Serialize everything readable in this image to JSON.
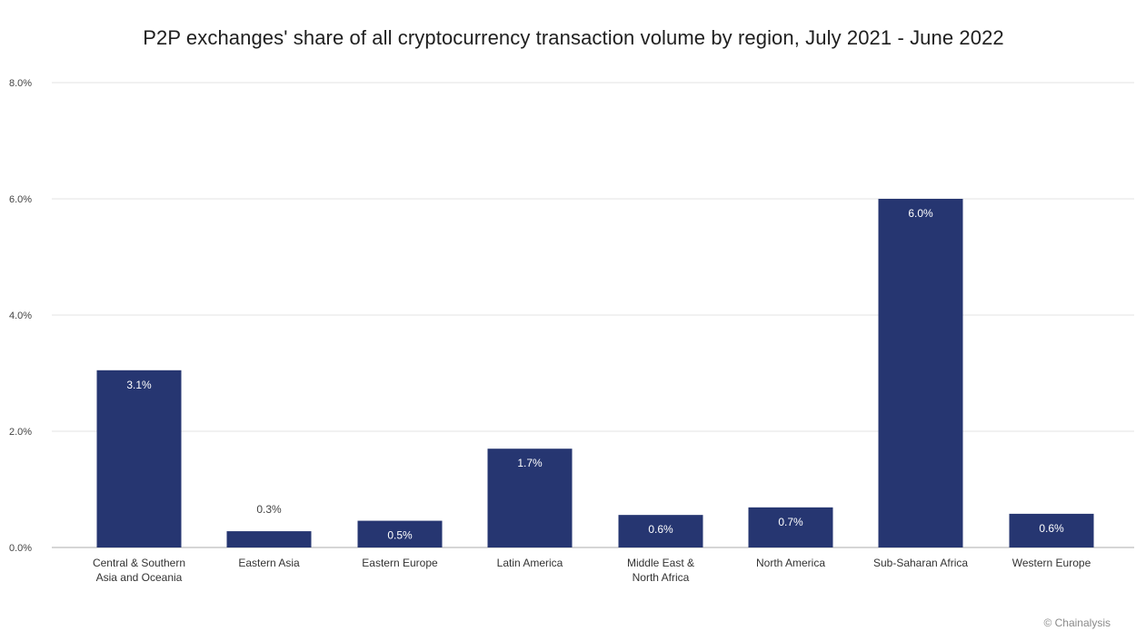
{
  "chart_data": {
    "type": "bar",
    "title": "P2P exchanges' share of all cryptocurrency transaction volume by region, July 2021 - June 2022",
    "categories": [
      [
        "Central & Southern",
        "Asia and Oceania"
      ],
      [
        "Eastern Asia"
      ],
      [
        "Eastern Europe"
      ],
      [
        "Latin America"
      ],
      [
        "Middle East &",
        "North Africa"
      ],
      [
        "North America"
      ],
      [
        "Sub-Saharan Africa"
      ],
      [
        "Western Europe"
      ]
    ],
    "values": [
      3.05,
      0.28,
      0.46,
      1.7,
      0.56,
      0.69,
      6.0,
      0.58
    ],
    "value_labels": [
      "3.1%",
      "0.3%",
      "0.5%",
      "1.7%",
      "0.6%",
      "0.7%",
      "6.0%",
      "0.6%"
    ],
    "ylim": [
      0,
      8
    ],
    "yticks": [
      "0.0%",
      "2.0%",
      "4.0%",
      "6.0%",
      "8.0%"
    ],
    "ytick_values": [
      0,
      2,
      4,
      6,
      8
    ],
    "bar_color": "#263671",
    "grid": true,
    "xlabel": "",
    "ylabel": ""
  },
  "credit": "© Chainalysis"
}
